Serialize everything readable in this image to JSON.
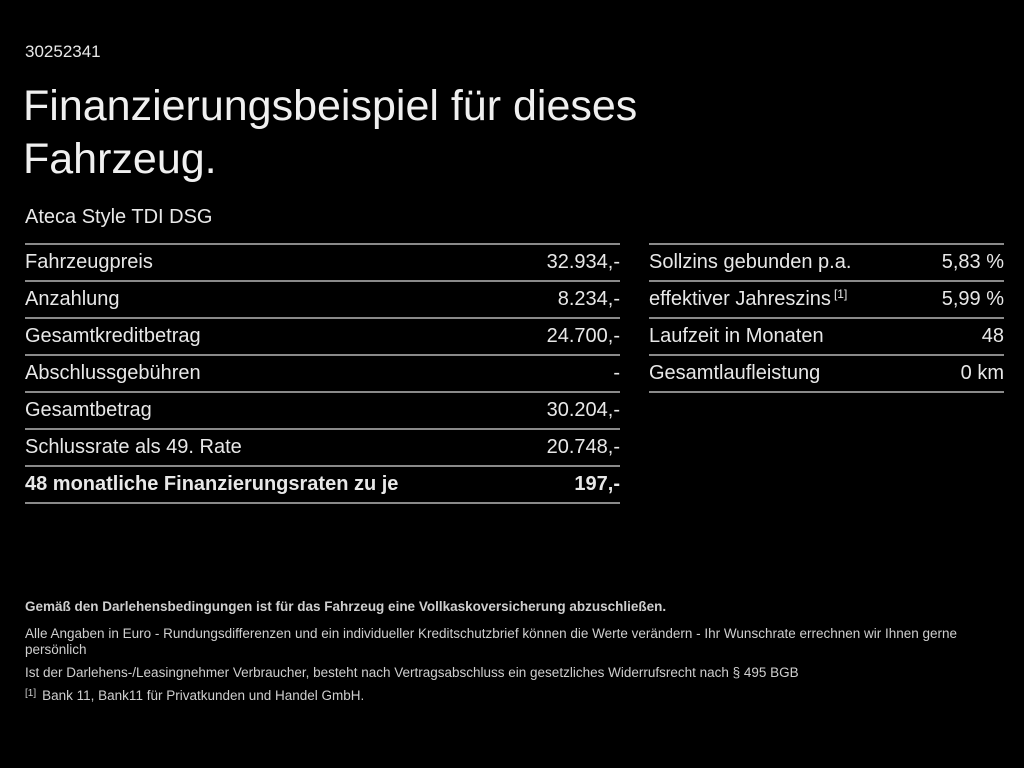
{
  "header": {
    "id_number": "30252341",
    "title_line1": "Finanzierungsbeispiel für dieses",
    "title_line2": "Fahrzeug.",
    "vehicle_name": "Ateca Style TDI DSG"
  },
  "finance_table": {
    "rows": [
      {
        "label": "Fahrzeugpreis",
        "value": "32.934,-"
      },
      {
        "label": "Anzahlung",
        "value": "8.234,-"
      },
      {
        "label": "Gesamtkreditbetrag",
        "value": "24.700,-"
      },
      {
        "label": "Abschlussgebühren",
        "value": "-"
      },
      {
        "label": "Gesamtbetrag",
        "value": "30.204,-"
      },
      {
        "label": "Schlussrate als 49. Rate",
        "value": "20.748,-"
      },
      {
        "label": "48 monatliche Finanzierungsraten zu je",
        "value": "197,-"
      }
    ]
  },
  "conditions_table": {
    "rows": [
      {
        "label": "Sollzins gebunden p.a.",
        "value": "5,83 %"
      },
      {
        "label": "effektiver Jahreszins",
        "sup": "[1]",
        "value": "5,99 %"
      },
      {
        "label": "Laufzeit in Monaten",
        "value": "48"
      },
      {
        "label": "Gesamtlaufleistung",
        "value": "0 km"
      }
    ]
  },
  "footer": {
    "insurance_note": "Gemäß den Darlehensbedingungen ist für das Fahrzeug eine Vollkaskoversicherung abzuschließen.",
    "note_line1": "Alle Angaben in Euro - Rundungsdifferenzen und ein individueller Kreditschutzbrief können die Werte verändern - Ihr Wunschrate errechnen wir Ihnen gerne persönlich",
    "note_line2": "Ist der Darlehens-/Leasingnehmer Verbraucher, besteht nach Vertragsabschluss ein gesetzliches Widerrufsrecht nach § 495 BGB",
    "footnote_marker": "[1]",
    "footnote_text": "Bank 11, Bank11 für Privatkunden und Handel GmbH."
  },
  "colors": {
    "bg": "#000000",
    "text": "#e8e8e8",
    "title": "#f0f0f0",
    "rule": "#8a8a8a",
    "footer-text": "#cfcfcf"
  }
}
